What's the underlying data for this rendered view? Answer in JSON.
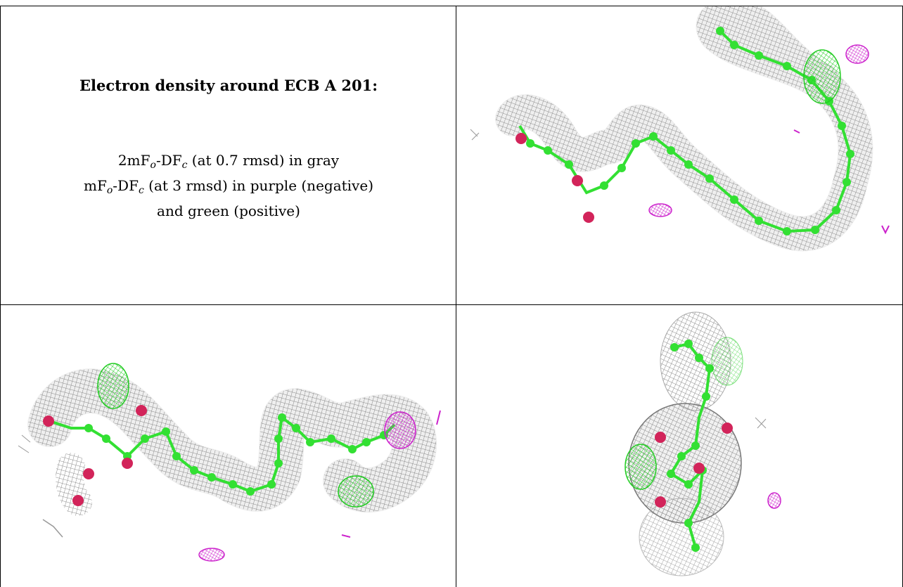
{
  "title": "Electron density around ECB A 201:",
  "legend": {
    "line1_prefix": "2mF",
    "line1_sub1": "o",
    "line1_mid": "-DF",
    "line1_sub2": "c",
    "line1_suffix": " (at 0.7 rmsd) in gray",
    "line2_prefix": "mF",
    "line2_sub1": "o",
    "line2_mid": "-DF",
    "line2_sub2": "c",
    "line2_suffix": " (at 3 rmsd) in purple (negative)",
    "line3": "and green (positive)"
  },
  "colors": {
    "mesh_gray": "#8a8a8a",
    "carbon_green": "#33e033",
    "oxygen_red": "#d2245a",
    "negative_purple": "#cc22cc",
    "positive_green": "#22cc22"
  },
  "panels": [
    "view-top-right",
    "view-bottom-left",
    "view-bottom-right"
  ]
}
